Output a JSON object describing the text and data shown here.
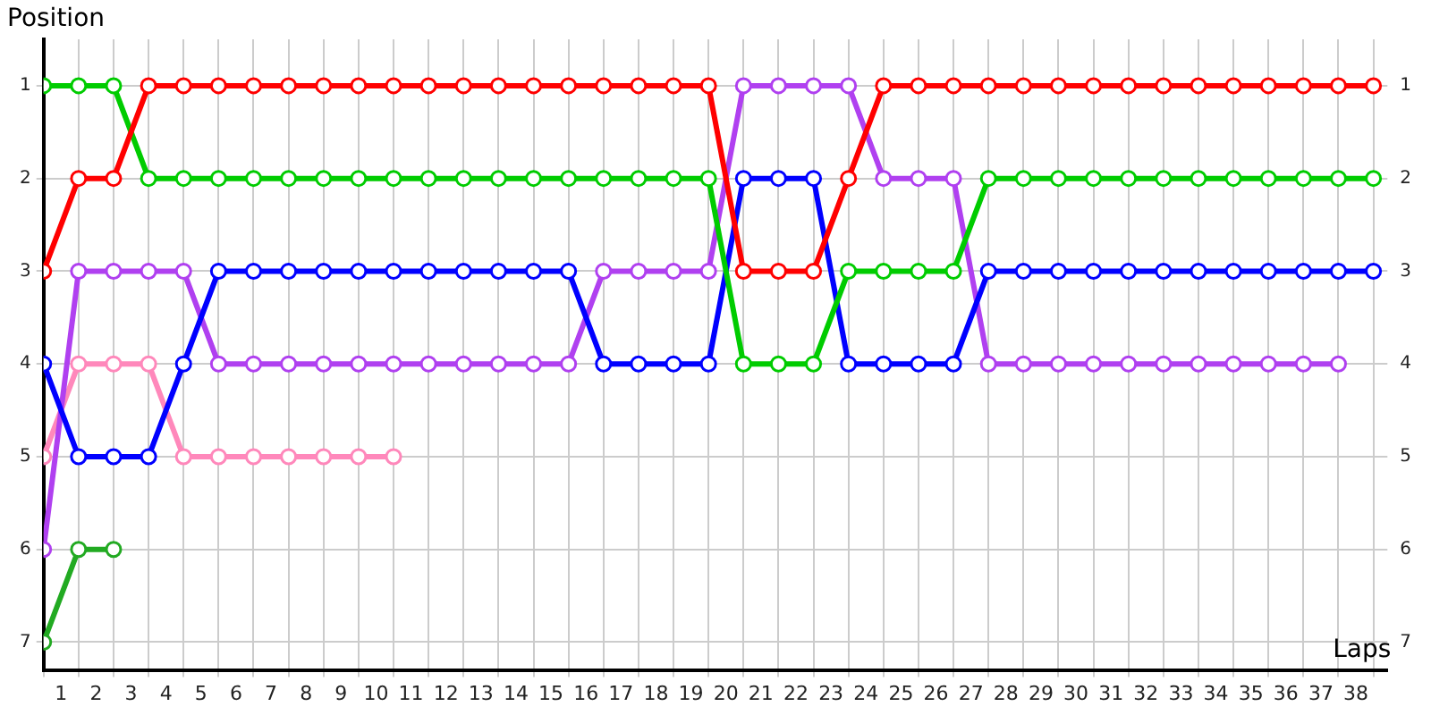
{
  "chart_data": {
    "type": "line",
    "xlabel": "Laps",
    "ylabel": "Position",
    "x": [
      0,
      1,
      2,
      3,
      4,
      5,
      6,
      7,
      8,
      9,
      10,
      11,
      12,
      13,
      14,
      15,
      16,
      17,
      18,
      19,
      20,
      21,
      22,
      23,
      24,
      25,
      26,
      27,
      28,
      29,
      30,
      31,
      32,
      33,
      34,
      35,
      36,
      37,
      38
    ],
    "series": [
      {
        "color": "#ff0000",
        "values": [
          3,
          2,
          2,
          1,
          1,
          1,
          1,
          1,
          1,
          1,
          1,
          1,
          1,
          1,
          1,
          1,
          1,
          1,
          1,
          1,
          3,
          3,
          3,
          2,
          1,
          1,
          1,
          1,
          1,
          1,
          1,
          1,
          1,
          1,
          1,
          1,
          1,
          1,
          1
        ]
      },
      {
        "color": "#00cc00",
        "values": [
          1,
          1,
          1,
          2,
          2,
          2,
          2,
          2,
          2,
          2,
          2,
          2,
          2,
          2,
          2,
          2,
          2,
          2,
          2,
          2,
          4,
          4,
          4,
          3,
          3,
          3,
          3,
          2,
          2,
          2,
          2,
          2,
          2,
          2,
          2,
          2,
          2,
          2,
          2
        ]
      },
      {
        "color": "#0000ff",
        "values": [
          4,
          5,
          5,
          5,
          4,
          3,
          3,
          3,
          3,
          3,
          3,
          3,
          3,
          3,
          3,
          3,
          4,
          4,
          4,
          4,
          2,
          2,
          2,
          4,
          4,
          4,
          4,
          3,
          3,
          3,
          3,
          3,
          3,
          3,
          3,
          3,
          3,
          3,
          3
        ]
      },
      {
        "color": "#b040f0",
        "values": [
          6,
          3,
          3,
          3,
          3,
          4,
          4,
          4,
          4,
          4,
          4,
          4,
          4,
          4,
          4,
          4,
          3,
          3,
          3,
          3,
          1,
          1,
          1,
          1,
          2,
          2,
          2,
          4,
          4,
          4,
          4,
          4,
          4,
          4,
          4,
          4,
          4,
          4,
          null
        ]
      },
      {
        "color": "#ff88bb",
        "values": [
          5,
          4,
          4,
          4,
          5,
          5,
          5,
          5,
          5,
          5,
          5,
          null,
          null,
          null,
          null,
          null,
          null,
          null,
          null,
          null,
          null,
          null,
          null,
          null,
          null,
          null,
          null,
          null,
          null,
          null,
          null,
          null,
          null,
          null,
          null,
          null,
          null,
          null,
          null
        ]
      },
      {
        "color": "#22aa22",
        "values": [
          7,
          6,
          6,
          null,
          null,
          null,
          null,
          null,
          null,
          null,
          null,
          null,
          null,
          null,
          null,
          null,
          null,
          null,
          null,
          null,
          null,
          null,
          null,
          null,
          null,
          null,
          null,
          null,
          null,
          null,
          null,
          null,
          null,
          null,
          null,
          null,
          null,
          null,
          null
        ]
      }
    ],
    "xlim": [
      0,
      38.4
    ],
    "xticks": [
      {
        "value": 0,
        "label": null
      },
      {
        "value": 0.5,
        "label": "1"
      },
      {
        "value": 1,
        "label": null
      },
      {
        "value": 1.5,
        "label": "2"
      },
      {
        "value": 2,
        "label": null
      },
      {
        "value": 2.5,
        "label": "3"
      },
      {
        "value": 3,
        "label": null
      },
      {
        "value": 3.5,
        "label": "4"
      },
      {
        "value": 4,
        "label": null
      },
      {
        "value": 4.5,
        "label": "5"
      },
      {
        "value": 5,
        "label": null
      },
      {
        "value": 5.5,
        "label": "6"
      },
      {
        "value": 6,
        "label": null
      },
      {
        "value": 6.5,
        "label": "7"
      },
      {
        "value": 7,
        "label": null
      },
      {
        "value": 7.5,
        "label": "8"
      },
      {
        "value": 8,
        "label": null
      },
      {
        "value": 8.5,
        "label": "9"
      },
      {
        "value": 9,
        "label": null
      },
      {
        "value": 9.5,
        "label": "10"
      },
      {
        "value": 10,
        "label": null
      },
      {
        "value": 10.5,
        "label": "11"
      },
      {
        "value": 11,
        "label": null
      },
      {
        "value": 11.5,
        "label": "12"
      },
      {
        "value": 12,
        "label": null
      },
      {
        "value": 12.5,
        "label": "13"
      },
      {
        "value": 13,
        "label": null
      },
      {
        "value": 13.5,
        "label": "14"
      },
      {
        "value": 14,
        "label": null
      },
      {
        "value": 14.5,
        "label": "15"
      },
      {
        "value": 15,
        "label": null
      },
      {
        "value": 15.5,
        "label": "16"
      },
      {
        "value": 16,
        "label": null
      },
      {
        "value": 16.5,
        "label": "17"
      },
      {
        "value": 17,
        "label": null
      },
      {
        "value": 17.5,
        "label": "18"
      },
      {
        "value": 18,
        "label": null
      },
      {
        "value": 18.5,
        "label": "19"
      },
      {
        "value": 19,
        "label": null
      },
      {
        "value": 19.5,
        "label": "20"
      },
      {
        "value": 20,
        "label": null
      },
      {
        "value": 20.5,
        "label": "21"
      },
      {
        "value": 21,
        "label": null
      },
      {
        "value": 21.5,
        "label": "22"
      },
      {
        "value": 22,
        "label": null
      },
      {
        "value": 22.5,
        "label": "23"
      },
      {
        "value": 23,
        "label": null
      },
      {
        "value": 23.5,
        "label": "24"
      },
      {
        "value": 24,
        "label": null
      },
      {
        "value": 24.5,
        "label": "25"
      },
      {
        "value": 25,
        "label": null
      },
      {
        "value": 25.5,
        "label": "26"
      },
      {
        "value": 26,
        "label": null
      },
      {
        "value": 26.5,
        "label": "27"
      },
      {
        "value": 27,
        "label": null
      },
      {
        "value": 27.5,
        "label": "28"
      },
      {
        "value": 28,
        "label": null
      },
      {
        "value": 28.5,
        "label": "29"
      },
      {
        "value": 29,
        "label": null
      },
      {
        "value": 29.5,
        "label": "30"
      },
      {
        "value": 30,
        "label": null
      },
      {
        "value": 30.5,
        "label": "31"
      },
      {
        "value": 31,
        "label": null
      },
      {
        "value": 31.5,
        "label": "32"
      },
      {
        "value": 32,
        "label": null
      },
      {
        "value": 32.5,
        "label": "33"
      },
      {
        "value": 33,
        "label": null
      },
      {
        "value": 33.5,
        "label": "34"
      },
      {
        "value": 34,
        "label": null
      },
      {
        "value": 34.5,
        "label": "35"
      },
      {
        "value": 35,
        "label": null
      },
      {
        "value": 35.5,
        "label": "36"
      },
      {
        "value": 36,
        "label": null
      },
      {
        "value": 36.5,
        "label": "37"
      },
      {
        "value": 37,
        "label": null
      },
      {
        "value": 37.5,
        "label": "38"
      },
      {
        "value": 38,
        "label": null
      }
    ],
    "ylim": [
      7.3,
      0.5
    ],
    "yticks": [
      1,
      2,
      3,
      4,
      5,
      6,
      7
    ],
    "y2lim": [
      7.3,
      0.5
    ],
    "y2ticks": [
      1,
      2,
      3,
      4,
      5,
      6,
      7
    ],
    "grid": true,
    "legend": false,
    "marker": "circle",
    "line_style": "solid"
  }
}
